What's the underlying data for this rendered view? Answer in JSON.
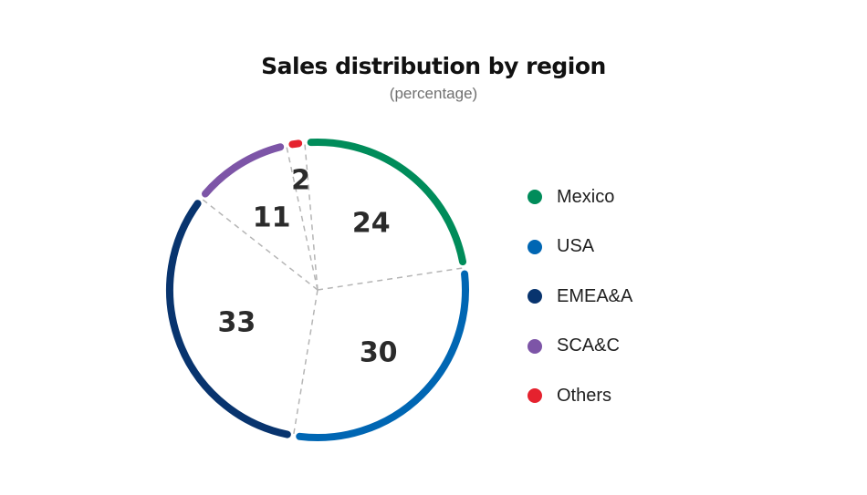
{
  "chart_data": {
    "type": "pie",
    "title": "Sales distribution by region",
    "subtitle": "(percentage)",
    "start_angle_deg": -5,
    "slices": [
      {
        "name": "Mexico",
        "value": 24,
        "color": "#008c5a"
      },
      {
        "name": "USA",
        "value": 30,
        "color": "#0066b3"
      },
      {
        "name": "EMEA&A",
        "value": 33,
        "color": "#08346e"
      },
      {
        "name": "SCA&C",
        "value": 11,
        "color": "#7d55a7"
      },
      {
        "name": "Others",
        "value": 2,
        "color": "#e5222e"
      }
    ],
    "data_labels": [
      "24",
      "30",
      "33",
      "11",
      "2"
    ],
    "legend": {
      "position": "right",
      "entries": [
        "Mexico",
        "USA",
        "EMEA&A",
        "SCA&C",
        "Others"
      ]
    },
    "style": "outline ring with dashed dividers"
  }
}
